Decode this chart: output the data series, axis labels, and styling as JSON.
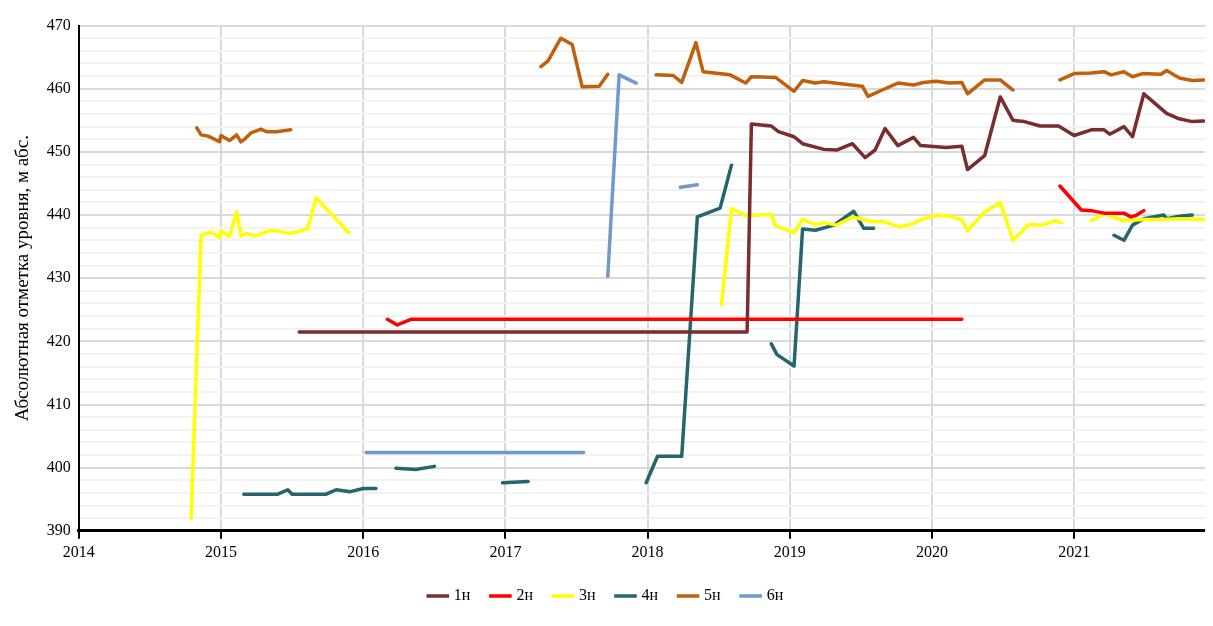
{
  "chart_data": {
    "type": "line",
    "ylabel": "Абсолютная отметка уровня, м абс.",
    "xlim": [
      2014,
      2021.92
    ],
    "xticks": [
      2014,
      2015,
      2016,
      2017,
      2018,
      2019,
      2020,
      2021
    ],
    "ylim": [
      390,
      470
    ],
    "yticks": [
      390,
      {
        "value": 392,
        "label": null
      },
      {
        "value": 394,
        "label": null
      },
      {
        "value": 396,
        "label": null
      },
      {
        "value": 398,
        "label": null
      },
      400,
      {
        "value": 402,
        "label": null
      },
      {
        "value": 404,
        "label": null
      },
      {
        "value": 406,
        "label": null
      },
      {
        "value": 408,
        "label": null
      },
      410,
      {
        "value": 412,
        "label": null
      },
      {
        "value": 414,
        "label": null
      },
      {
        "value": 416,
        "label": null
      },
      {
        "value": 418,
        "label": null
      },
      420,
      {
        "value": 422,
        "label": null
      },
      {
        "value": 424,
        "label": null
      },
      {
        "value": 426,
        "label": null
      },
      {
        "value": 428,
        "label": null
      },
      430,
      {
        "value": 432,
        "label": null
      },
      {
        "value": 434,
        "label": null
      },
      {
        "value": 436,
        "label": null
      },
      {
        "value": 438,
        "label": null
      },
      440,
      {
        "value": 442,
        "label": null
      },
      {
        "value": 444,
        "label": null
      },
      {
        "value": 446,
        "label": null
      },
      {
        "value": 448,
        "label": null
      },
      450,
      {
        "value": 452,
        "label": null
      },
      {
        "value": 454,
        "label": null
      },
      {
        "value": 456,
        "label": null
      },
      {
        "value": 458,
        "label": null
      },
      460,
      {
        "value": 462,
        "label": null
      },
      {
        "value": 464,
        "label": null
      },
      {
        "value": 466,
        "label": null
      },
      {
        "value": 468,
        "label": null
      },
      470
    ],
    "grid": true,
    "legend": "bottom",
    "marker": "none",
    "line_style": "solid",
    "series": [
      {
        "name": "1н",
        "color": "#7b2c2c",
        "x": [
          2015.55,
          2018.7,
          2018.73,
          2018.87,
          2018.92,
          2019.03,
          2019.09,
          2019.24,
          2019.33,
          2019.44,
          2019.53,
          2019.6,
          2019.67,
          2019.76,
          2019.87,
          2019.92,
          2020.1,
          2020.21,
          2020.25,
          2020.37,
          2020.48,
          2020.57,
          2020.65,
          2020.76,
          2020.89,
          2021.0,
          2021.12,
          2021.21,
          2021.25,
          2021.35,
          2021.41,
          2021.49,
          2021.65,
          2021.73,
          2021.83,
          2021.91
        ],
        "values": [
          421.5,
          421.5,
          454.4,
          454.1,
          453.2,
          452.4,
          451.3,
          450.4,
          450.3,
          451.3,
          449.1,
          450.3,
          453.7,
          451,
          452.3,
          451,
          450.7,
          450.9,
          447.2,
          449.4,
          458.7,
          455,
          454.8,
          454.1,
          454.1,
          452.6,
          453.5,
          453.5,
          452.8,
          454,
          452.4,
          459.2,
          456.1,
          455.3,
          454.8,
          454.9
        ]
      },
      {
        "name": "2н",
        "color": "#ff0000",
        "x": [
          2016.17,
          2016.24,
          2016.34,
          2020.21,
          2020.5,
          2020.9,
          2021.05,
          2021.12,
          2021.21,
          2021.35,
          2021.4,
          2021.44,
          2021.49
        ],
        "values": [
          423.5,
          422.6,
          423.5,
          423.5,
          null,
          444.6,
          440.8,
          440.7,
          440.3,
          440.3,
          439.7,
          440,
          440.7
        ]
      },
      {
        "name": "3н",
        "color": "#ffff00",
        "x": [
          2014.79,
          2014.86,
          2014.93,
          2014.99,
          2015.0,
          2015.06,
          2015.11,
          2015.14,
          2015.18,
          2015.24,
          2015.34,
          2015.4,
          2015.48,
          2015.55,
          2015.61,
          2015.67,
          2015.9,
          2017.2,
          2018.52,
          2018.59,
          2018.69,
          2018.87,
          2018.9,
          2019.03,
          2019.09,
          2019.18,
          2019.24,
          2019.33,
          2019.44,
          2019.59,
          2019.66,
          2019.77,
          2019.86,
          2019.93,
          2020.03,
          2020.12,
          2020.21,
          2020.25,
          2020.37,
          2020.48,
          2020.57,
          2020.68,
          2020.77,
          2020.87,
          2020.91,
          2021.0,
          2021.12,
          2021.21,
          2021.35,
          2021.48,
          2021.62,
          2021.74,
          2021.91
        ],
        "values": [
          391.9,
          436.8,
          437.3,
          436.4,
          437.5,
          436.6,
          440.5,
          436.7,
          437.1,
          436.7,
          437.5,
          437.5,
          437.1,
          437.4,
          437.9,
          442.7,
          437.2,
          null,
          425.8,
          441,
          439.9,
          440.1,
          438.3,
          437.2,
          439.3,
          438.5,
          438.8,
          438.4,
          439.7,
          438.9,
          439,
          438.1,
          438.6,
          439.3,
          440,
          439.8,
          439.3,
          437.5,
          440.5,
          442,
          436,
          438.5,
          438.4,
          439.1,
          438.8,
          null,
          439.1,
          440.2,
          439.1,
          439.3,
          439.3,
          439.4,
          439.3
        ]
      },
      {
        "name": "4н",
        "color": "#26656f",
        "x": [
          2015.16,
          2015.4,
          2015.47,
          2015.5,
          2015.74,
          2015.81,
          2015.91,
          2016.0,
          2016.09,
          2016.16,
          2016.23,
          2016.37,
          2016.5,
          2016.7,
          2016.98,
          2017.16,
          2017.5,
          2017.99,
          2018.07,
          2018.24,
          2018.35,
          2018.51,
          2018.59,
          2018.7,
          2018.87,
          2018.91,
          2019.03,
          2019.09,
          2019.18,
          2019.31,
          2019.45,
          2019.52,
          2019.59,
          2020.5,
          2021.28,
          2021.35,
          2021.41,
          2021.49,
          2021.63,
          2021.65,
          2021.74,
          2021.83
        ],
        "values": [
          395.8,
          395.8,
          396.5,
          395.8,
          395.8,
          396.5,
          396.2,
          396.7,
          396.7,
          null,
          399.9,
          399.7,
          400.2,
          null,
          397.6,
          397.8,
          null,
          397.6,
          401.8,
          401.8,
          439.7,
          441.1,
          447.9,
          null,
          419.6,
          417.9,
          416.1,
          437.8,
          437.6,
          438.4,
          440.6,
          437.9,
          437.9,
          null,
          436.8,
          436,
          438.4,
          439.4,
          440,
          439.4,
          439.8,
          440
        ]
      },
      {
        "name": "5н",
        "color": "#c0600c",
        "x": [
          2014.83,
          2014.86,
          2014.91,
          2014.99,
          2015.0,
          2015.06,
          2015.11,
          2015.14,
          2015.16,
          2015.21,
          2015.28,
          2015.32,
          2015.39,
          2015.49,
          2016.5,
          2017.25,
          2017.3,
          2017.39,
          2017.47,
          2017.54,
          2017.66,
          2017.72,
          2017.9,
          2018.06,
          2018.18,
          2018.24,
          2018.34,
          2018.39,
          2018.58,
          2018.69,
          2018.73,
          2018.9,
          2019.03,
          2019.09,
          2019.18,
          2019.24,
          2019.51,
          2019.55,
          2019.67,
          2019.76,
          2019.87,
          2019.94,
          2020.03,
          2020.12,
          2020.21,
          2020.25,
          2020.37,
          2020.48,
          2020.57,
          2020.75,
          2020.9,
          2021.0,
          2021.12,
          2021.21,
          2021.26,
          2021.35,
          2021.41,
          2021.48,
          2021.61,
          2021.65,
          2021.74,
          2021.83,
          2021.91
        ],
        "values": [
          453.8,
          452.7,
          452.5,
          451.6,
          452.6,
          451.8,
          452.7,
          451.6,
          451.9,
          453,
          453.6,
          453.2,
          453.2,
          453.5,
          null,
          463.5,
          464.4,
          468,
          467,
          460.3,
          460.4,
          462.3,
          null,
          462.2,
          462.1,
          461,
          467.3,
          462.7,
          462.2,
          460.9,
          461.9,
          461.8,
          459.6,
          461.3,
          460.9,
          461.1,
          460.4,
          458.8,
          460,
          460.9,
          460.6,
          461,
          461.2,
          460.9,
          461,
          459.2,
          461.4,
          461.4,
          459.8,
          null,
          461.4,
          462.4,
          462.5,
          462.7,
          462.2,
          462.7,
          461.9,
          462.4,
          462.3,
          462.9,
          461.7,
          461.3,
          461.4
        ]
      },
      {
        "name": "6н",
        "color": "#7199cc",
        "x": [
          2016.02,
          2017.55,
          2017.65,
          2017.72,
          2017.8,
          2017.92,
          2018.1,
          2018.23,
          2018.35
        ],
        "values": [
          402.4,
          402.4,
          null,
          430.3,
          462.2,
          460.9,
          null,
          444.4,
          444.8
        ]
      }
    ]
  }
}
